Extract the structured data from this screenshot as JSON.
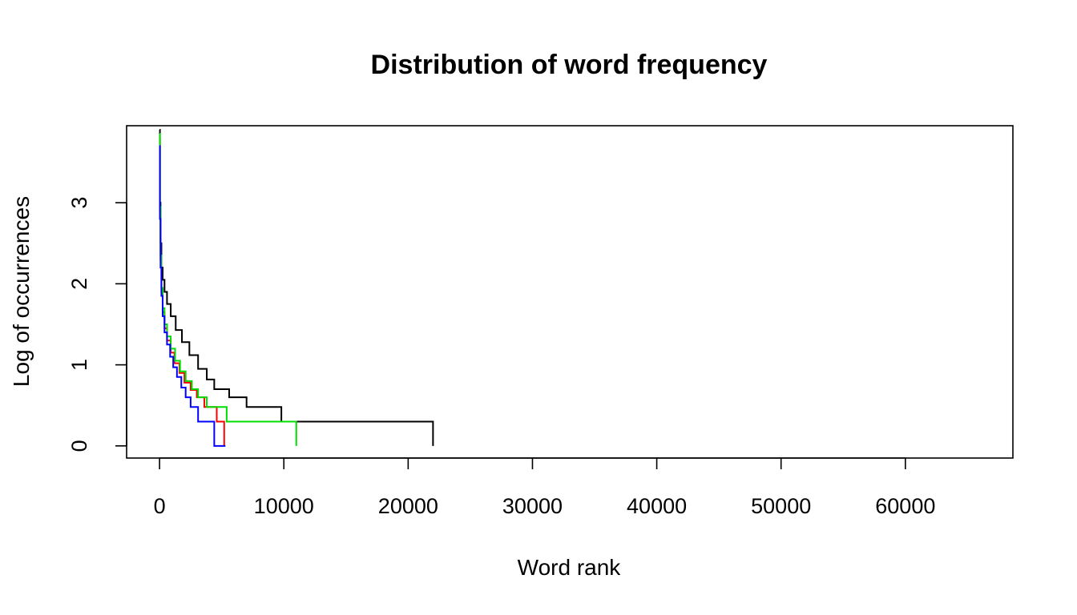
{
  "chart_data": {
    "type": "line",
    "title": "Distribution of word frequency",
    "xlabel": "Word rank",
    "ylabel": "Log of occurrences",
    "xlim": [
      -2650,
      68650
    ],
    "ylim": [
      -0.15,
      3.95
    ],
    "xticks": [
      0,
      10000,
      20000,
      30000,
      40000,
      50000,
      60000
    ],
    "xtick_labels": [
      "0",
      "10000",
      "20000",
      "30000",
      "40000",
      "50000",
      "60000"
    ],
    "yticks": [
      0,
      1,
      2,
      3
    ],
    "ytick_labels": [
      "0",
      "1",
      "2",
      "3"
    ],
    "grid": false,
    "legend": "none",
    "series": [
      {
        "color": "#000000",
        "x": [
          0,
          30,
          80,
          150,
          250,
          400,
          600,
          900,
          1300,
          1800,
          2400,
          3100,
          3800,
          4400,
          5600,
          7000,
          9800,
          22000
        ],
        "y": [
          3.9,
          3.0,
          2.5,
          2.2,
          2.05,
          1.9,
          1.75,
          1.6,
          1.43,
          1.28,
          1.12,
          0.95,
          0.82,
          0.7,
          0.6,
          0.48,
          0.3,
          0.0
        ]
      },
      {
        "color": "#ff0000",
        "x": [
          0,
          30,
          80,
          150,
          250,
          400,
          600,
          900,
          1200,
          1600,
          2000,
          2500,
          3000,
          3600,
          4600,
          5200
        ],
        "y": [
          3.8,
          2.9,
          2.3,
          1.9,
          1.65,
          1.45,
          1.3,
          1.15,
          1.02,
          0.9,
          0.78,
          0.69,
          0.6,
          0.48,
          0.3,
          0.0
        ]
      },
      {
        "color": "#00dd00",
        "x": [
          0,
          30,
          80,
          150,
          250,
          400,
          600,
          900,
          1250,
          1650,
          2100,
          2600,
          3100,
          3800,
          5400,
          11000
        ],
        "y": [
          3.85,
          2.95,
          2.35,
          1.95,
          1.7,
          1.5,
          1.35,
          1.2,
          1.05,
          0.92,
          0.8,
          0.7,
          0.6,
          0.48,
          0.3,
          0.0
        ]
      },
      {
        "color": "#0000ff",
        "x": [
          0,
          30,
          80,
          150,
          250,
          400,
          600,
          850,
          1100,
          1400,
          1750,
          2100,
          2500,
          3100,
          4400,
          5300
        ],
        "y": [
          3.7,
          2.8,
          2.2,
          1.85,
          1.6,
          1.4,
          1.25,
          1.1,
          0.97,
          0.85,
          0.72,
          0.6,
          0.48,
          0.3,
          0.0,
          0.0
        ]
      }
    ]
  }
}
